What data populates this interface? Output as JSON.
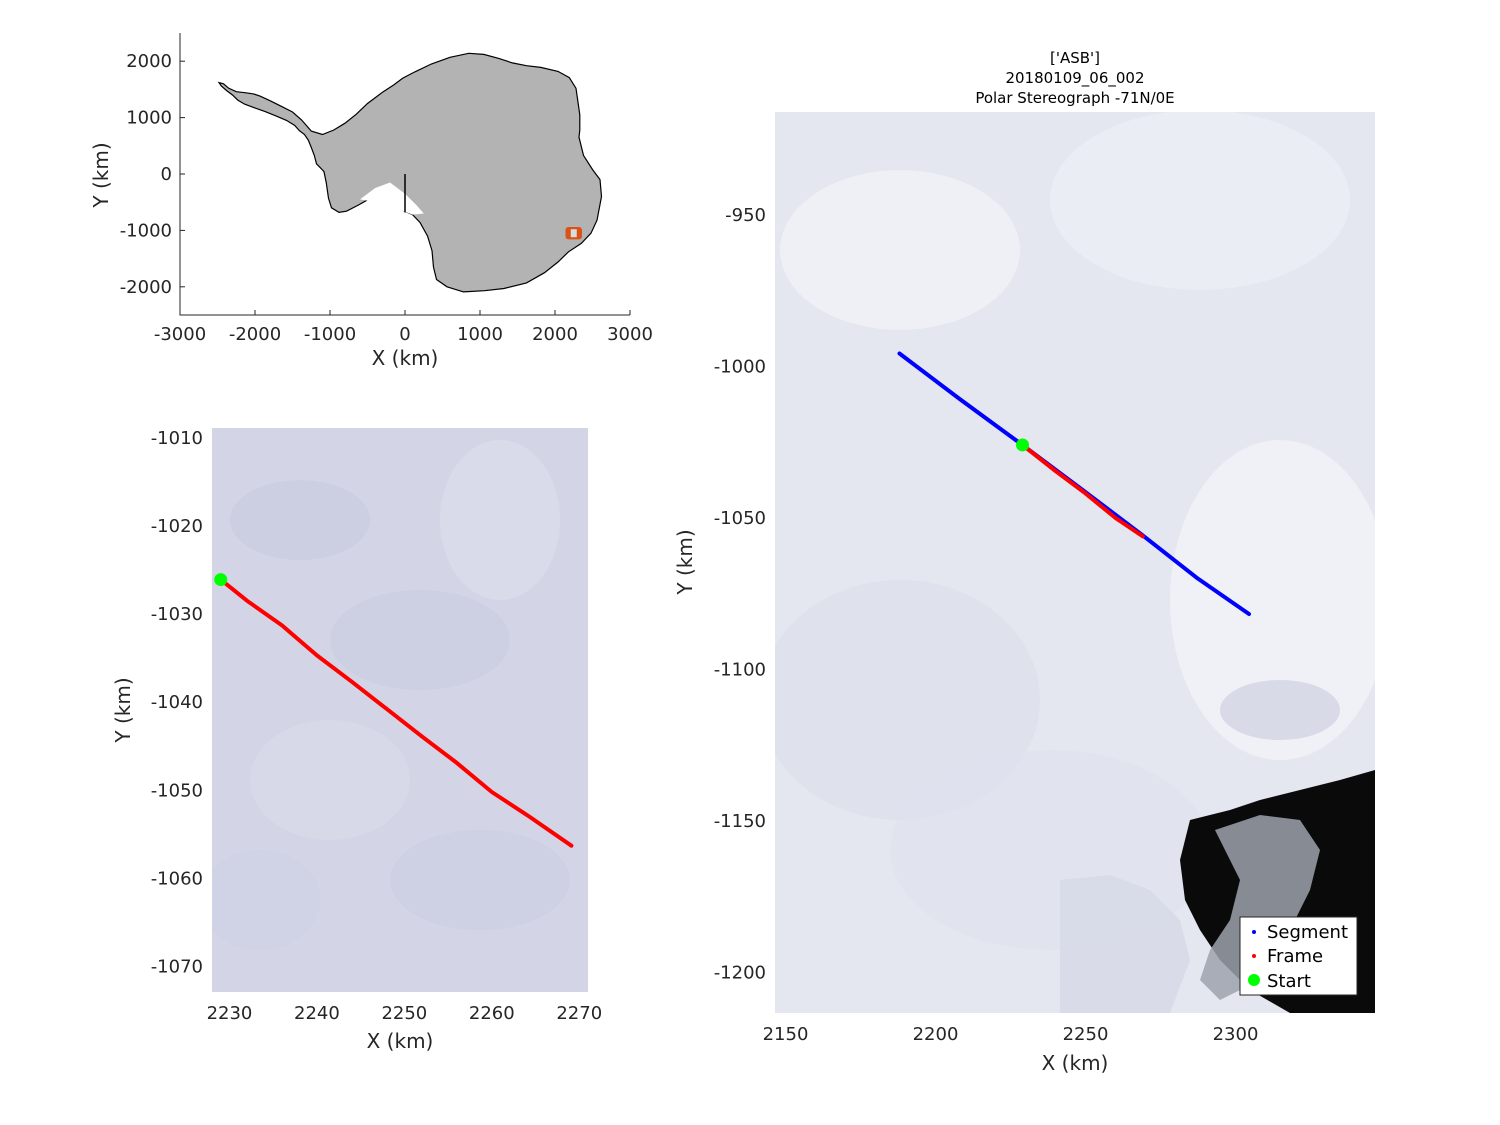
{
  "chart_data": [
    {
      "id": "overview",
      "type": "map",
      "xlabel": "X (km)",
      "ylabel": "Y (km)",
      "xlim": [
        -3000,
        3000
      ],
      "ylim": [
        -2500,
        2500
      ],
      "xticks": [
        -3000,
        -2000,
        -1000,
        0,
        1000,
        2000,
        3000
      ],
      "yticks": [
        -2000,
        -1000,
        0,
        1000,
        2000
      ],
      "land_color": "#b3b3b3",
      "outline_color": "#000000",
      "coastline_km": [
        [
          -2480,
          1620
        ],
        [
          -2450,
          1560
        ],
        [
          -2380,
          1480
        ],
        [
          -2300,
          1400
        ],
        [
          -2230,
          1310
        ],
        [
          -2140,
          1240
        ],
        [
          -2020,
          1180
        ],
        [
          -1870,
          1110
        ],
        [
          -1720,
          1030
        ],
        [
          -1580,
          950
        ],
        [
          -1470,
          860
        ],
        [
          -1410,
          770
        ],
        [
          -1340,
          700
        ],
        [
          -1290,
          600
        ],
        [
          -1250,
          470
        ],
        [
          -1210,
          330
        ],
        [
          -1180,
          180
        ],
        [
          -1120,
          100
        ],
        [
          -1080,
          40
        ],
        [
          -1050,
          -160
        ],
        [
          -1020,
          -430
        ],
        [
          -980,
          -600
        ],
        [
          -880,
          -680
        ],
        [
          -780,
          -660
        ],
        [
          -620,
          -550
        ],
        [
          -500,
          -460
        ],
        [
          -420,
          -330
        ],
        [
          -330,
          -260
        ],
        [
          -220,
          -420
        ],
        [
          -120,
          -580
        ],
        [
          -20,
          -650
        ],
        [
          100,
          -720
        ],
        [
          200,
          -860
        ],
        [
          300,
          -1100
        ],
        [
          360,
          -1360
        ],
        [
          380,
          -1650
        ],
        [
          420,
          -1870
        ],
        [
          560,
          -2000
        ],
        [
          780,
          -2090
        ],
        [
          1060,
          -2070
        ],
        [
          1320,
          -2030
        ],
        [
          1620,
          -1930
        ],
        [
          1860,
          -1750
        ],
        [
          2040,
          -1560
        ],
        [
          2180,
          -1380
        ],
        [
          2350,
          -1230
        ],
        [
          2480,
          -1050
        ],
        [
          2560,
          -820
        ],
        [
          2620,
          -400
        ],
        [
          2600,
          -100
        ],
        [
          2500,
          80
        ],
        [
          2380,
          330
        ],
        [
          2320,
          650
        ],
        [
          2330,
          780
        ],
        [
          2330,
          1050
        ],
        [
          2280,
          1520
        ],
        [
          2190,
          1710
        ],
        [
          2040,
          1820
        ],
        [
          1810,
          1890
        ],
        [
          1620,
          1920
        ],
        [
          1430,
          1970
        ],
        [
          1250,
          2050
        ],
        [
          1050,
          2120
        ],
        [
          850,
          2140
        ],
        [
          600,
          2070
        ],
        [
          350,
          1950
        ],
        [
          130,
          1810
        ],
        [
          -30,
          1700
        ],
        [
          -150,
          1580
        ],
        [
          -300,
          1450
        ],
        [
          -500,
          1250
        ],
        [
          -650,
          1060
        ],
        [
          -800,
          900
        ],
        [
          -950,
          780
        ],
        [
          -1100,
          700
        ],
        [
          -1250,
          760
        ],
        [
          -1380,
          960
        ],
        [
          -1500,
          1100
        ],
        [
          -1650,
          1200
        ],
        [
          -1800,
          1300
        ],
        [
          -1930,
          1380
        ],
        [
          -2020,
          1420
        ],
        [
          -2120,
          1440
        ],
        [
          -2250,
          1460
        ],
        [
          -2350,
          1520
        ],
        [
          -2420,
          1600
        ],
        [
          -2480,
          1620
        ]
      ],
      "inner_embayment_km": [
        [
          -600,
          -450
        ],
        [
          -400,
          -250
        ],
        [
          -200,
          -150
        ],
        [
          0,
          -350
        ],
        [
          150,
          -550
        ],
        [
          250,
          -700
        ],
        [
          100,
          -720
        ],
        [
          -100,
          -620
        ],
        [
          -300,
          -520
        ]
      ],
      "meridian_line_km": [
        [
          0,
          0
        ],
        [
          0,
          -680
        ]
      ],
      "region_box": {
        "center_km": [
          2250,
          -1050
        ],
        "half_size_km": 110,
        "color": "#d95319",
        "inner_color": "#dcdcdc"
      }
    },
    {
      "id": "frame",
      "type": "line",
      "xlabel": "X (km)",
      "ylabel": "Y (km)",
      "xlim": [
        2228,
        2271
      ],
      "ylim": [
        -1073,
        -1009
      ],
      "xticks": [
        2230,
        2240,
        2250,
        2260,
        2270
      ],
      "yticks": [
        -1010,
        -1020,
        -1030,
        -1040,
        -1050,
        -1060,
        -1070
      ],
      "background_color": "#d3d5e6",
      "series": [
        {
          "role": "frame",
          "color": "#ff0000",
          "points": [
            [
              2229,
              -1026.2
            ],
            [
              2232,
              -1028.6
            ],
            [
              2236,
              -1031.4
            ],
            [
              2240,
              -1034.8
            ],
            [
              2244,
              -1037.8
            ],
            [
              2248,
              -1040.9
            ],
            [
              2252,
              -1044.0
            ],
            [
              2256,
              -1047.0
            ],
            [
              2260,
              -1050.3
            ],
            [
              2264,
              -1052.9
            ],
            [
              2269.1,
              -1056.4
            ]
          ]
        },
        {
          "role": "start",
          "color": "#00ff00",
          "points": [
            [
              2229,
              -1026.2
            ]
          ]
        }
      ]
    },
    {
      "id": "main",
      "type": "line",
      "title": [
        "['ASB']",
        "20180109_06_002",
        "Polar Stereograph -71N/0E"
      ],
      "xlabel": "X (km)",
      "ylabel": "Y (km)",
      "xlim": [
        2146.5,
        2346.5
      ],
      "ylim": [
        -1213.7,
        -916.3
      ],
      "xticks": [
        2150,
        2200,
        2250,
        2300
      ],
      "yticks": [
        -950,
        -1000,
        -1050,
        -1100,
        -1150,
        -1200
      ],
      "background_color": "#e4e6f0",
      "ocean_color": "#0a0a0a",
      "series": [
        {
          "name": "Segment",
          "color": "#0000ff",
          "points": [
            [
              2188,
              -996
            ],
            [
              2208,
              -1011
            ],
            [
              2229,
              -1026.2
            ],
            [
              2249,
              -1041
            ],
            [
              2269,
              -1056
            ],
            [
              2287,
              -1070
            ],
            [
              2304.5,
              -1082
            ]
          ]
        },
        {
          "name": "Frame",
          "color": "#ff0000",
          "points": [
            [
              2229,
              -1026.2
            ],
            [
              2240,
              -1034.8
            ],
            [
              2250,
              -1042.2
            ],
            [
              2260,
              -1050.3
            ],
            [
              2269.1,
              -1056.4
            ]
          ]
        },
        {
          "name": "Start",
          "color": "#00ff00",
          "points": [
            [
              2229,
              -1026.2
            ]
          ]
        }
      ],
      "legend": {
        "position": "bottom-right",
        "entries": [
          "Segment",
          "Frame",
          "Start"
        ]
      }
    }
  ]
}
